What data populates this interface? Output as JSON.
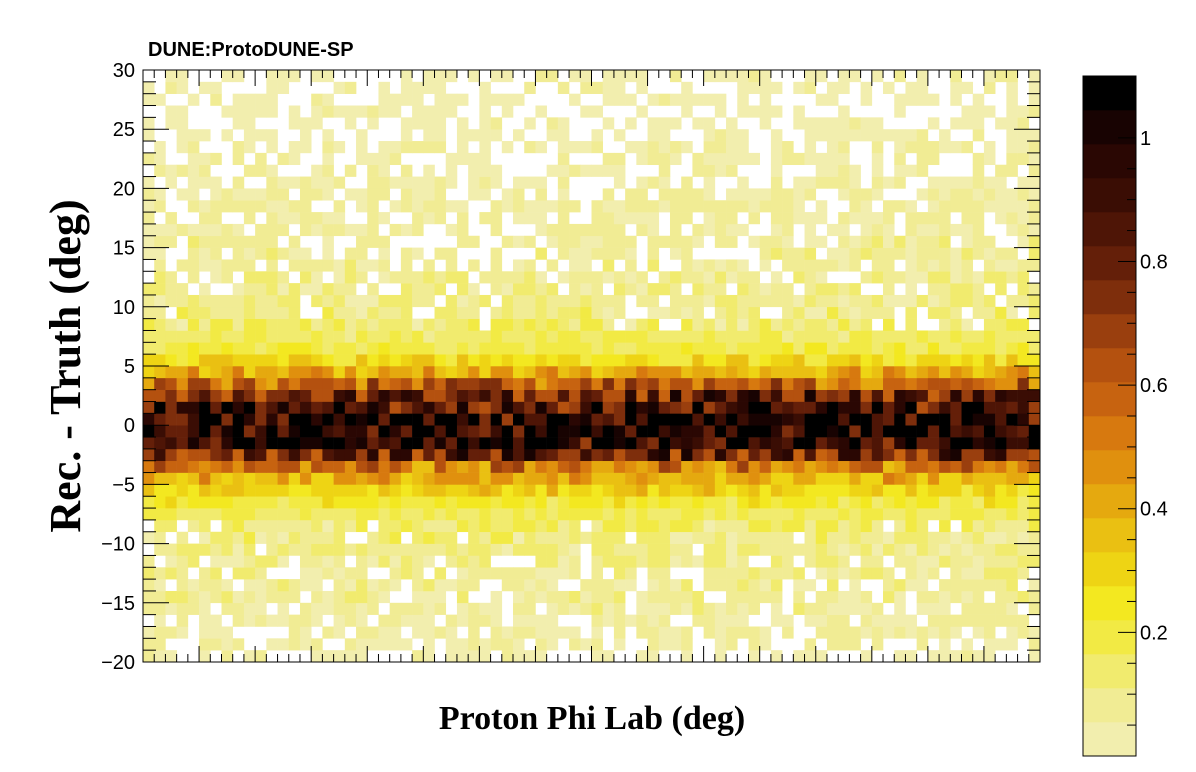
{
  "chart_data": {
    "type": "heatmap",
    "experiment_label": "DUNE:ProtoDUNE-SP",
    "xlabel": "Proton Phi Lab (deg)",
    "ylabel": "Rec. - Truth (deg)",
    "ylim": [
      -20,
      30
    ],
    "y_ticks": [
      -20,
      -15,
      -10,
      -5,
      0,
      5,
      10,
      15,
      20,
      25,
      30
    ],
    "y_tick_labels": [
      "−20",
      "−15",
      "−10",
      "−5",
      "0",
      "5",
      "10",
      "15",
      "20",
      "25",
      "30"
    ],
    "x_tick_labels_shown": false,
    "n_bins_x": 80,
    "n_bins_y": 50,
    "y_bin_width": 1,
    "z_range": [
      0,
      1.1
    ],
    "colorbar_ticks": [
      0.2,
      0.4,
      0.6,
      0.8,
      1
    ],
    "colorbar_tick_labels": [
      "0.2",
      "0.4",
      "0.6",
      "0.8",
      "1"
    ],
    "colorbar_levels": 20,
    "palette": [
      "#fffbe6",
      "#f2eeae",
      "#f1ec94",
      "#f1eb6e",
      "#f2ea44",
      "#f3e820",
      "#eed414",
      "#eac012",
      "#e5a90f",
      "#e0900e",
      "#d7790f",
      "#c76310",
      "#b4510f",
      "#9a3f0e",
      "#7e2e0c",
      "#641f09",
      "#4e1506",
      "#3a0d04",
      "#2a0703",
      "#180302",
      "#000000"
    ],
    "y_profile_mean": [
      {
        "y": -19.5,
        "z": 0.03
      },
      {
        "y": -18.5,
        "z": 0.04
      },
      {
        "y": -17.5,
        "z": 0.05
      },
      {
        "y": -16.5,
        "z": 0.05
      },
      {
        "y": -15.5,
        "z": 0.06
      },
      {
        "y": -14.5,
        "z": 0.06
      },
      {
        "y": -13.5,
        "z": 0.06
      },
      {
        "y": -12.5,
        "z": 0.07
      },
      {
        "y": -11.5,
        "z": 0.07
      },
      {
        "y": -10.5,
        "z": 0.08
      },
      {
        "y": -9.5,
        "z": 0.09
      },
      {
        "y": -8.5,
        "z": 0.11
      },
      {
        "y": -7.5,
        "z": 0.16
      },
      {
        "y": -6.5,
        "z": 0.22
      },
      {
        "y": -5.5,
        "z": 0.31
      },
      {
        "y": -4.5,
        "z": 0.4
      },
      {
        "y": -3.5,
        "z": 0.52
      },
      {
        "y": -2.5,
        "z": 0.78
      },
      {
        "y": -1.5,
        "z": 0.97
      },
      {
        "y": -0.5,
        "z": 1.03
      },
      {
        "y": 0.5,
        "z": 1.0
      },
      {
        "y": 1.5,
        "z": 0.92
      },
      {
        "y": 2.5,
        "z": 0.78
      },
      {
        "y": 3.5,
        "z": 0.58
      },
      {
        "y": 4.5,
        "z": 0.4
      },
      {
        "y": 5.5,
        "z": 0.28
      },
      {
        "y": 6.5,
        "z": 0.2
      },
      {
        "y": 7.5,
        "z": 0.15
      },
      {
        "y": 8.5,
        "z": 0.11
      },
      {
        "y": 9.5,
        "z": 0.09
      },
      {
        "y": 10.5,
        "z": 0.08
      },
      {
        "y": 11.5,
        "z": 0.07
      },
      {
        "y": 12.5,
        "z": 0.07
      },
      {
        "y": 13.5,
        "z": 0.06
      },
      {
        "y": 14.5,
        "z": 0.06
      },
      {
        "y": 15.5,
        "z": 0.06
      },
      {
        "y": 16.5,
        "z": 0.05
      },
      {
        "y": 17.5,
        "z": 0.05
      },
      {
        "y": 18.5,
        "z": 0.05
      },
      {
        "y": 19.5,
        "z": 0.05
      },
      {
        "y": 20.5,
        "z": 0.04
      },
      {
        "y": 21.5,
        "z": 0.04
      },
      {
        "y": 22.5,
        "z": 0.04
      },
      {
        "y": 23.5,
        "z": 0.04
      },
      {
        "y": 24.5,
        "z": 0.03
      },
      {
        "y": 25.5,
        "z": 0.03
      },
      {
        "y": 26.5,
        "z": 0.03
      },
      {
        "y": 27.5,
        "z": 0.03
      },
      {
        "y": 28.5,
        "z": 0.03
      },
      {
        "y": 29.5,
        "z": 0.03
      }
    ]
  }
}
